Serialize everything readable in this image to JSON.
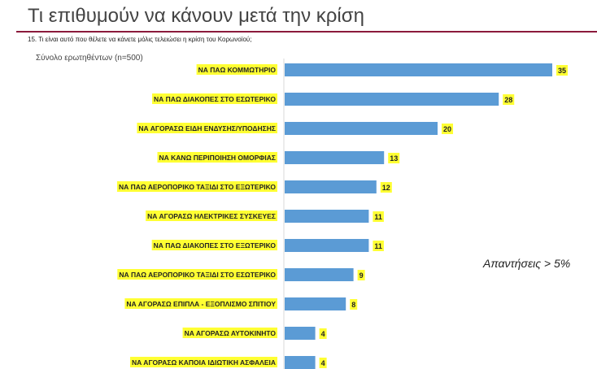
{
  "slide": {
    "title": "Τι επιθυμούν να κάνουν μετά την κρίση",
    "question": "15. Τι είναι αυτό που θέλετε να κάνετε μόλις  τελειώσει η κρίση του Κορωνοϊού;",
    "sample": "Σύνολο ερωτηθέντων (n=500)",
    "note": "Απαντήσεις > 5%"
  },
  "colors": {
    "bar": "#5b9bd5",
    "highlight": "#ffff33",
    "rule": "#8b1a3c"
  },
  "chart_data": {
    "type": "bar",
    "orientation": "horizontal",
    "categories": [
      "ΝΑ ΠΑΩ ΚΟΜΜΩΤΗΡΙΟ",
      "ΝΑ ΠΑΩ ΔΙΑΚΟΠΕΣ ΣΤΟ ΕΣΩΤΕΡΙΚΟ",
      "ΝΑ ΑΓΟΡΑΣΩ ΕΙΔΗ ΕΝΔΥΣΗΣ/ΥΠΟΔΗΣΗΣ",
      "ΝΑ ΚΑΝΩ ΠΕΡΙΠΟΙΗΣΗ ΟΜΟΡΦΙΑΣ",
      "ΝΑ ΠΑΩ ΑΕΡΟΠΟΡΙΚΟ ΤΑΞΙΔΙ ΣΤΟ ΕΞΩΤΕΡΙΚΟ",
      "ΝΑ ΑΓΟΡΑΣΩ ΗΛΕΚΤΡΙΚΕΣ ΣΥΣΚΕΥΕΣ",
      "ΝΑ ΠΑΩ ΔΙΑΚΟΠΕΣ ΣΤΟ ΕΞΩΤΕΡΙΚΟ",
      "ΝΑ ΠΑΩ ΑΕΡΟΠΟΡΙΚΟ ΤΑΞΙΔΙ ΣΤΟ ΕΣΩΤΕΡΙΚΟ",
      "ΝΑ ΑΓΟΡΑΣΩ ΕΠΙΠΛΑ - ΕΞΟΠΛΙΣΜΟ ΣΠΙΤΙΟΥ",
      "ΝΑ ΑΓΟΡΑΣΩ ΑΥΤΟΚΙΝΗΤΟ",
      "ΝΑ ΑΓΟΡΑΣΩ ΚΑΠΟΙΑ ΙΔΙΩΤΙΚΗ ΑΣΦΑΛΕΙΑ"
    ],
    "values": [
      35,
      28,
      20,
      13,
      12,
      11,
      11,
      9,
      8,
      4,
      4
    ],
    "data_labels": true,
    "grid": false
  }
}
